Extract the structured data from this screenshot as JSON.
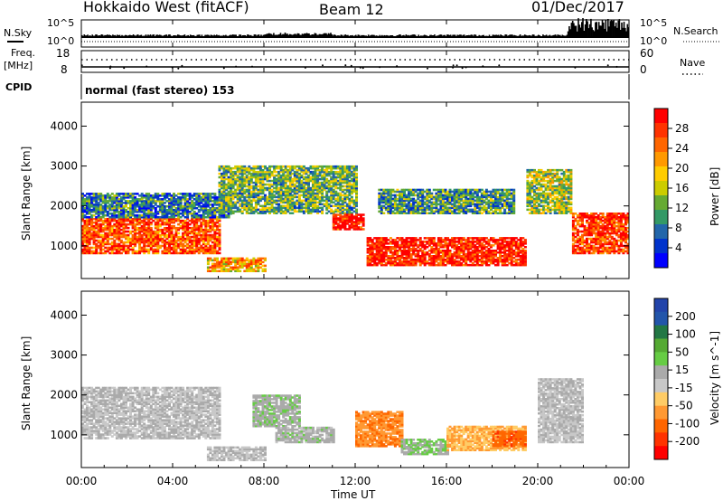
{
  "header": {
    "station": "Hokkaido West (fitACF)",
    "beam": "Beam 12",
    "date": "01/Dec/2017"
  },
  "top_panels": {
    "nsky_label": "N.Sky",
    "nsearch_label": "N.Search",
    "freq_label_line1": "Freq.",
    "freq_label_line2": "[MHz]",
    "cpid_label": "CPID",
    "nave_label": "Nave",
    "noise_ticks_right": [
      "10^5",
      "10^0"
    ],
    "noise_ticks_left": [
      "10^5",
      "10^0"
    ],
    "freq_ticks": [
      "18",
      "8"
    ],
    "nave_ticks": [
      "60",
      "0"
    ],
    "cpid_text": "normal (fast stereo) 153"
  },
  "colorbars": {
    "power": {
      "label": "Power [dB]",
      "ticks": [
        "28",
        "24",
        "20",
        "16",
        "12",
        "8",
        "4"
      ],
      "colors": [
        "#ff0000",
        "#ff3300",
        "#ff6600",
        "#ff9900",
        "#ffcc00",
        "#cccc00",
        "#66aa33",
        "#339966",
        "#2266aa",
        "#0033cc",
        "#0000ff"
      ]
    },
    "velocity": {
      "label": "Velocity [m s^-1]",
      "ticks": [
        "200",
        "100",
        "50",
        "15",
        "-15",
        "-50",
        "-100",
        "-200"
      ],
      "colors": [
        "#2244aa",
        "#2255aa",
        "#227744",
        "#55aa33",
        "#66cc44",
        "#aaaaaa",
        "#c8c8c8",
        "#ffcc66",
        "#ff9933",
        "#ff6600",
        "#ff3300",
        "#ff0000"
      ]
    }
  },
  "axes": {
    "ylabel": "Slant Range [km]",
    "xlabel": "Time UT",
    "xticks": [
      "00:00",
      "04:00",
      "08:00",
      "12:00",
      "16:00",
      "20:00",
      "00:00"
    ],
    "yticks": [
      "1000",
      "2000",
      "3000",
      "4000"
    ]
  },
  "chart_data": [
    {
      "type": "heatmap",
      "name": "Power",
      "xlabel": "Time UT",
      "ylabel": "Slant Range [km]",
      "xlim": [
        0,
        24
      ],
      "ylim": [
        180,
        4600
      ],
      "colorbar": "Power [dB]",
      "cmin": 0,
      "cmax": 30,
      "regions": [
        {
          "t0": 0.0,
          "t1": 6.0,
          "r0": 800,
          "r1": 1700,
          "value": 25
        },
        {
          "t0": 0.0,
          "t1": 6.5,
          "r0": 1700,
          "r1": 2300,
          "value": 8
        },
        {
          "t0": 5.5,
          "t1": 8.0,
          "r0": 350,
          "r1": 700,
          "value": 20
        },
        {
          "t0": 6.0,
          "t1": 12.0,
          "r0": 1800,
          "r1": 3000,
          "value": 12
        },
        {
          "t0": 11.0,
          "t1": 12.3,
          "r0": 1400,
          "r1": 1800,
          "value": 28
        },
        {
          "t0": 12.5,
          "t1": 19.5,
          "r0": 500,
          "r1": 1200,
          "value": 28
        },
        {
          "t0": 13.0,
          "t1": 19.0,
          "r0": 1800,
          "r1": 2400,
          "value": 10
        },
        {
          "t0": 19.5,
          "t1": 21.5,
          "r0": 1800,
          "r1": 2900,
          "value": 14
        },
        {
          "t0": 21.5,
          "t1": 24.0,
          "r0": 800,
          "r1": 1800,
          "value": 26
        }
      ]
    },
    {
      "type": "heatmap",
      "name": "Velocity",
      "xlabel": "Time UT",
      "ylabel": "Slant Range [km]",
      "xlim": [
        0,
        24
      ],
      "ylim": [
        180,
        4600
      ],
      "colorbar": "Velocity [m s^-1]",
      "cmin": -250,
      "cmax": 250,
      "regions": [
        {
          "t0": 0.0,
          "t1": 6.0,
          "r0": 900,
          "r1": 2200,
          "value": 0
        },
        {
          "t0": 5.5,
          "t1": 8.0,
          "r0": 350,
          "r1": 700,
          "value": 0
        },
        {
          "t0": 7.5,
          "t1": 9.5,
          "r0": 1200,
          "r1": 2000,
          "value": 30
        },
        {
          "t0": 8.5,
          "t1": 11.0,
          "r0": 800,
          "r1": 1200,
          "value": 20
        },
        {
          "t0": 12.0,
          "t1": 14.0,
          "r0": 700,
          "r1": 1600,
          "value": -120
        },
        {
          "t0": 14.0,
          "t1": 16.0,
          "r0": 500,
          "r1": 900,
          "value": 40
        },
        {
          "t0": 16.0,
          "t1": 19.5,
          "r0": 600,
          "r1": 1200,
          "value": -80
        },
        {
          "t0": 18.0,
          "t1": 19.5,
          "r0": 700,
          "r1": 1100,
          "value": -150
        },
        {
          "t0": 20.0,
          "t1": 22.0,
          "r0": 800,
          "r1": 2400,
          "value": 0
        }
      ]
    }
  ]
}
